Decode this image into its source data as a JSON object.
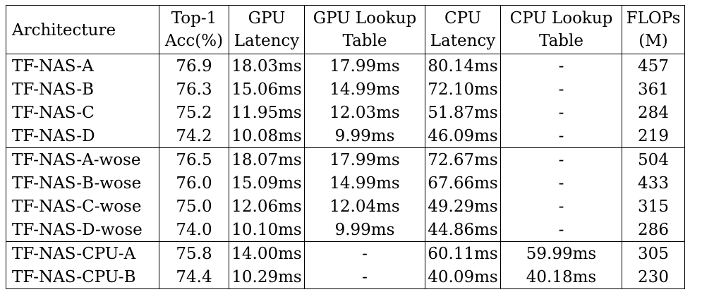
{
  "table": {
    "headers": {
      "architecture": "Architecture",
      "acc_line1": "Top-1",
      "acc_line2": "Acc(%)",
      "gpu_latency_line1": "GPU",
      "gpu_latency_line2": "Latency",
      "gpu_lut_line1": "GPU Lookup",
      "gpu_lut_line2": "Table",
      "cpu_latency_line1": "CPU",
      "cpu_latency_line2": "Latency",
      "cpu_lut_line1": "CPU Lookup",
      "cpu_lut_line2": "Table",
      "flops_line1": "FLOPs",
      "flops_line2": "(M)"
    },
    "groups": [
      {
        "rows": [
          {
            "arch": "TF-NAS-A",
            "acc": "76.9",
            "gpu_lat": "18.03ms",
            "gpu_lut": "17.99ms",
            "cpu_lat": "80.14ms",
            "cpu_lut": "-",
            "flops": "457"
          },
          {
            "arch": "TF-NAS-B",
            "acc": "76.3",
            "gpu_lat": "15.06ms",
            "gpu_lut": "14.99ms",
            "cpu_lat": "72.10ms",
            "cpu_lut": "-",
            "flops": "361"
          },
          {
            "arch": "TF-NAS-C",
            "acc": "75.2",
            "gpu_lat": "11.95ms",
            "gpu_lut": "12.03ms",
            "cpu_lat": "51.87ms",
            "cpu_lut": "-",
            "flops": "284"
          },
          {
            "arch": "TF-NAS-D",
            "acc": "74.2",
            "gpu_lat": "10.08ms",
            "gpu_lut": "9.99ms",
            "cpu_lat": "46.09ms",
            "cpu_lut": "-",
            "flops": "219"
          }
        ]
      },
      {
        "rows": [
          {
            "arch": "TF-NAS-A-wose",
            "acc": "76.5",
            "gpu_lat": "18.07ms",
            "gpu_lut": "17.99ms",
            "cpu_lat": "72.67ms",
            "cpu_lut": "-",
            "flops": "504"
          },
          {
            "arch": "TF-NAS-B-wose",
            "acc": "76.0",
            "gpu_lat": "15.09ms",
            "gpu_lut": "14.99ms",
            "cpu_lat": "67.66ms",
            "cpu_lut": "-",
            "flops": "433"
          },
          {
            "arch": "TF-NAS-C-wose",
            "acc": "75.0",
            "gpu_lat": "12.06ms",
            "gpu_lut": "12.04ms",
            "cpu_lat": "49.29ms",
            "cpu_lut": "-",
            "flops": "315"
          },
          {
            "arch": "TF-NAS-D-wose",
            "acc": "74.0",
            "gpu_lat": "10.10ms",
            "gpu_lut": "9.99ms",
            "cpu_lat": "44.86ms",
            "cpu_lut": "-",
            "flops": "286"
          }
        ]
      },
      {
        "rows": [
          {
            "arch": "TF-NAS-CPU-A",
            "acc": "75.8",
            "gpu_lat": "14.00ms",
            "gpu_lut": "-",
            "cpu_lat": "60.11ms",
            "cpu_lut": "59.99ms",
            "flops": "305"
          },
          {
            "arch": "TF-NAS-CPU-B",
            "acc": "74.4",
            "gpu_lat": "10.29ms",
            "gpu_lut": "-",
            "cpu_lat": "40.09ms",
            "cpu_lut": "40.18ms",
            "flops": "230"
          }
        ]
      }
    ]
  }
}
